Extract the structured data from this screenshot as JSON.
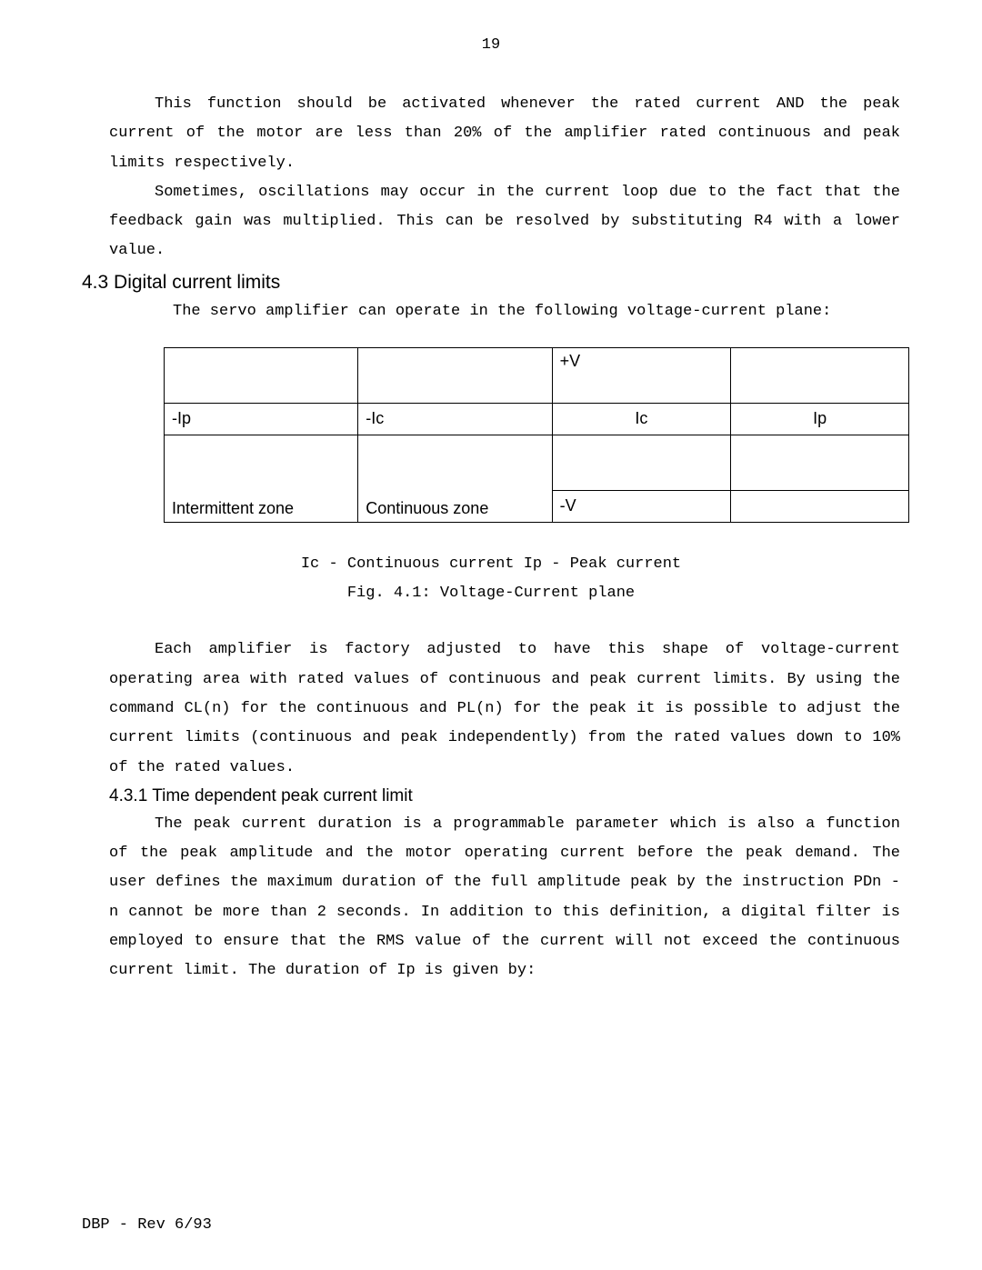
{
  "page_number": "19",
  "paragraphs": {
    "p1a": "This function should be activated whenever the rated current AND the peak current of the motor are less than 20% of the amplifier rated continuous and peak limits respectively.",
    "p1b": "Sometimes, oscillations may occur in the current loop due to the fact that the feedback gain was multiplied. This can be resolved by substituting R4 with a lower value."
  },
  "heading_43": "4.3  Digital current limits",
  "servo_line": "The servo amplifier can operate in the following voltage-current plane:",
  "table": {
    "rows": [
      [
        "",
        "",
        "+V",
        ""
      ],
      [
        "-Ip",
        "-Ic",
        "Ic",
        "Ip"
      ],
      [
        "",
        "",
        "",
        ""
      ],
      [
        "Intermittent zone",
        "Continuous zone",
        "-V",
        ""
      ]
    ]
  },
  "caption_line1": "Ic - Continuous current       Ip - Peak current",
  "caption_line2": "Fig. 4.1: Voltage-Current plane",
  "paragraphs2": {
    "p2": "Each amplifier is factory adjusted to have this shape of voltage-current operating area with rated values of continuous and peak current limits. By using the command CL(n) for the continuous and PL(n) for the peak it is possible to adjust the current limits (continuous and peak independently) from the rated values down to 10% of the rated values."
  },
  "heading_431": "4.3.1  Time dependent peak current limit",
  "paragraphs3": {
    "p3": "The peak current duration is a programmable parameter which is also a function of the peak amplitude and the motor operating current before the peak demand. The user defines the maximum duration of the full amplitude peak by the instruction PDn - n cannot be more than 2 seconds. In addition to this definition, a digital filter is employed to ensure that the RMS value of the current will not exceed the continuous current limit. The duration of Ip is given by:"
  },
  "footer": "DBP - Rev 6/93"
}
